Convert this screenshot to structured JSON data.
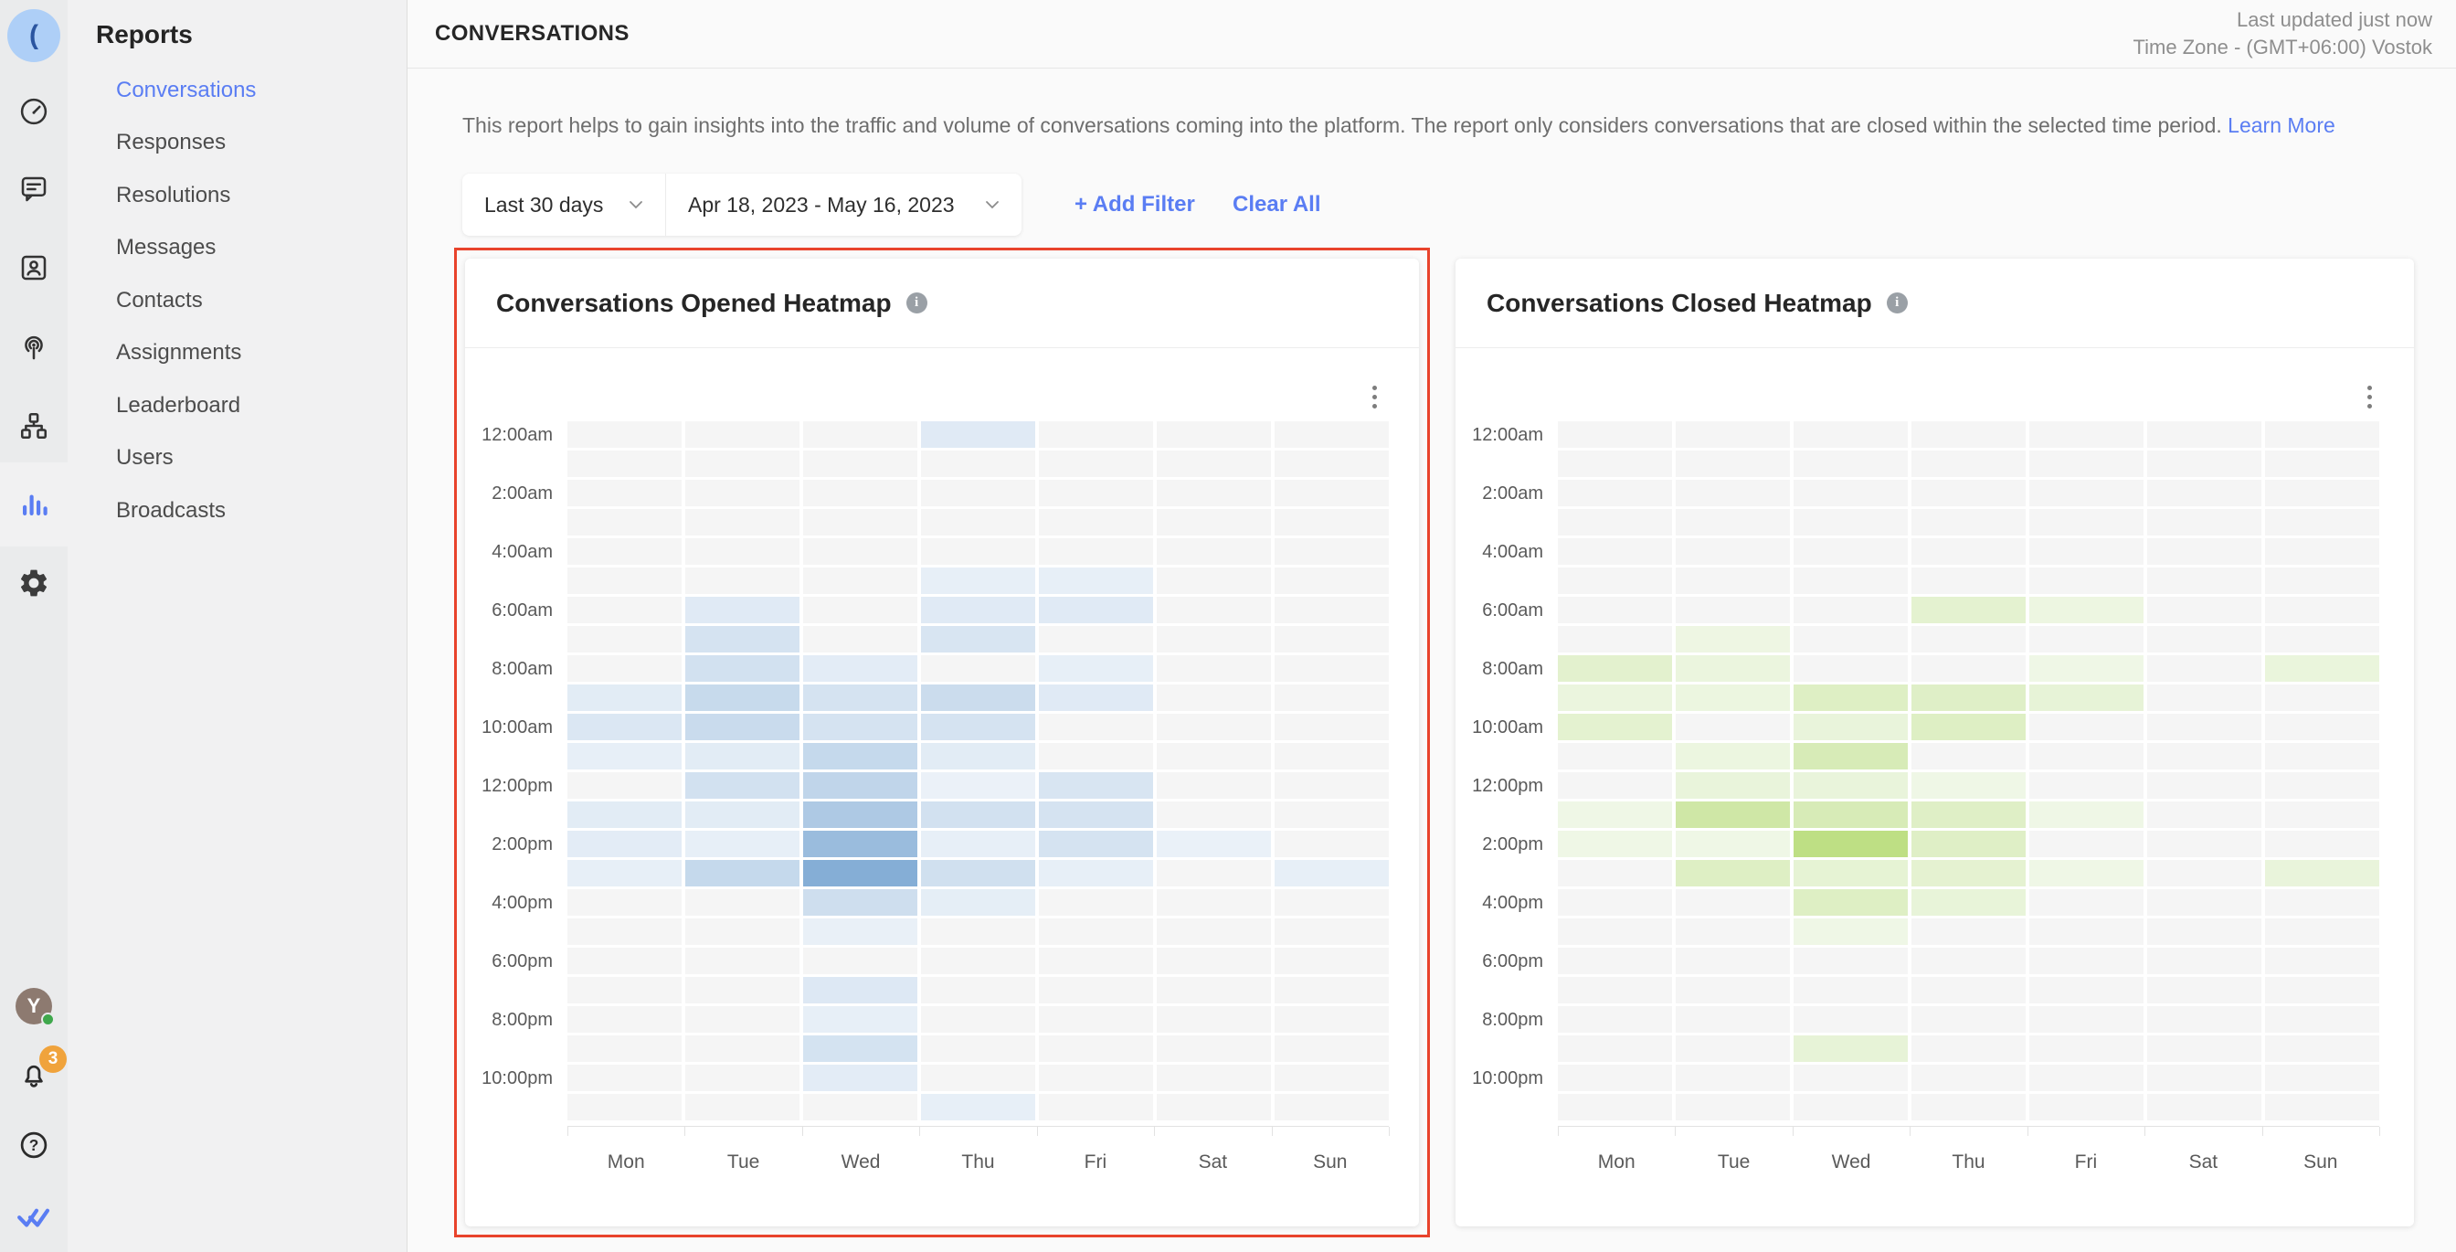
{
  "app": {
    "accent_blue": "#5a7df3",
    "highlight_red": "#e8432c",
    "zero_cell_gray": "#f5f5f5"
  },
  "rail": {
    "workspace_avatar_glyph": "(",
    "nav_icons": [
      "dashboard",
      "messages",
      "contacts",
      "broadcast",
      "workflows",
      "reports",
      "settings"
    ],
    "active_icon": "reports",
    "user_initial": "Y",
    "notification_count": "3",
    "bottom_icons": [
      "user-avatar",
      "bell",
      "help",
      "brand-logo"
    ]
  },
  "sidebar": {
    "title": "Reports",
    "items": [
      {
        "label": "Conversations",
        "active": true
      },
      {
        "label": "Responses",
        "active": false
      },
      {
        "label": "Resolutions",
        "active": false
      },
      {
        "label": "Messages",
        "active": false
      },
      {
        "label": "Contacts",
        "active": false
      },
      {
        "label": "Assignments",
        "active": false
      },
      {
        "label": "Leaderboard",
        "active": false
      },
      {
        "label": "Users",
        "active": false
      },
      {
        "label": "Broadcasts",
        "active": false
      }
    ]
  },
  "header": {
    "title": "CONVERSATIONS",
    "last_updated": "Last updated just now",
    "timezone": "Time Zone - (GMT+06:00) Vostok"
  },
  "intro": {
    "text": "This report helps to gain insights into the traffic and volume of conversations coming into the platform. The report only considers conversations that are closed within the selected time period.",
    "link_label": "Learn More"
  },
  "filters": {
    "preset": "Last 30 days",
    "date_range": "Apr 18, 2023 - May 16, 2023",
    "add_filter_label": "+ Add Filter",
    "clear_all_label": "Clear All"
  },
  "chart_data": [
    {
      "type": "heatmap",
      "title": "Conversations Opened Heatmap",
      "selected": true,
      "legend_position": "none",
      "grid": "cells with white gaps, gray = zero",
      "x_labels": [
        "Mon",
        "Tue",
        "Wed",
        "Thu",
        "Fri",
        "Sat",
        "Sun"
      ],
      "y_tick_labels": [
        "12:00am",
        "2:00am",
        "4:00am",
        "6:00am",
        "8:00am",
        "10:00am",
        "12:00pm",
        "2:00pm",
        "4:00pm",
        "6:00pm",
        "8:00pm",
        "10:00pm"
      ],
      "y_rows": [
        "12:00am",
        "1:00am",
        "2:00am",
        "3:00am",
        "4:00am",
        "5:00am",
        "6:00am",
        "7:00am",
        "8:00am",
        "9:00am",
        "10:00am",
        "11:00am",
        "12:00pm",
        "1:00pm",
        "2:00pm",
        "3:00pm",
        "4:00pm",
        "5:00pm",
        "6:00pm",
        "7:00pm",
        "8:00pm",
        "9:00pm",
        "10:00pm",
        "11:00pm"
      ],
      "value_scale": "relative intensity 0-100, 0 = no conversations, 100 = peak (Wed 3:00pm)",
      "colors": {
        "zero": "#f5f5f5",
        "min": "#f0f5fa",
        "max": "#85aed6"
      },
      "values": [
        [
          0,
          0,
          0,
          15,
          0,
          0,
          0
        ],
        [
          0,
          0,
          0,
          0,
          0,
          0,
          0
        ],
        [
          0,
          0,
          0,
          0,
          0,
          0,
          0
        ],
        [
          0,
          0,
          0,
          0,
          0,
          0,
          0
        ],
        [
          0,
          0,
          0,
          0,
          0,
          0,
          0
        ],
        [
          0,
          0,
          0,
          8,
          8,
          0,
          0
        ],
        [
          0,
          15,
          0,
          15,
          15,
          0,
          0
        ],
        [
          0,
          25,
          0,
          22,
          0,
          0,
          0
        ],
        [
          0,
          28,
          12,
          0,
          8,
          0,
          0
        ],
        [
          13,
          38,
          25,
          35,
          15,
          0,
          0
        ],
        [
          20,
          36,
          25,
          25,
          0,
          0,
          0
        ],
        [
          8,
          13,
          40,
          13,
          0,
          0,
          0
        ],
        [
          0,
          28,
          45,
          5,
          22,
          0,
          0
        ],
        [
          13,
          13,
          62,
          28,
          25,
          0,
          0
        ],
        [
          12,
          8,
          80,
          8,
          25,
          6,
          0
        ],
        [
          8,
          40,
          100,
          30,
          8,
          0,
          8
        ],
        [
          0,
          0,
          32,
          10,
          0,
          0,
          0
        ],
        [
          0,
          0,
          7,
          0,
          0,
          0,
          0
        ],
        [
          0,
          0,
          0,
          0,
          0,
          0,
          0
        ],
        [
          0,
          0,
          18,
          0,
          0,
          0,
          0
        ],
        [
          0,
          0,
          8,
          0,
          0,
          0,
          0
        ],
        [
          0,
          0,
          26,
          0,
          0,
          0,
          0
        ],
        [
          0,
          0,
          12,
          0,
          0,
          0,
          0
        ],
        [
          0,
          0,
          0,
          8,
          0,
          0,
          0
        ]
      ]
    },
    {
      "type": "heatmap",
      "title": "Conversations Closed Heatmap",
      "selected": false,
      "legend_position": "none",
      "grid": "cells with white gaps, gray = zero",
      "x_labels": [
        "Mon",
        "Tue",
        "Wed",
        "Thu",
        "Fri",
        "Sat",
        "Sun"
      ],
      "y_tick_labels": [
        "12:00am",
        "2:00am",
        "4:00am",
        "6:00am",
        "8:00am",
        "10:00am",
        "12:00pm",
        "2:00pm",
        "4:00pm",
        "6:00pm",
        "8:00pm",
        "10:00pm"
      ],
      "y_rows": [
        "12:00am",
        "1:00am",
        "2:00am",
        "3:00am",
        "4:00am",
        "5:00am",
        "6:00am",
        "7:00am",
        "8:00am",
        "9:00am",
        "10:00am",
        "11:00am",
        "12:00pm",
        "1:00pm",
        "2:00pm",
        "3:00pm",
        "4:00pm",
        "5:00pm",
        "6:00pm",
        "7:00pm",
        "8:00pm",
        "9:00pm",
        "10:00pm",
        "11:00pm"
      ],
      "value_scale": "relative intensity 0-100, 0 = no conversations, 100 = peak (Wed 2:00pm)",
      "colors": {
        "zero": "#f5f5f5",
        "min": "#f3f9ee",
        "max": "#bedf84"
      },
      "values": [
        [
          0,
          0,
          0,
          0,
          0,
          0,
          0
        ],
        [
          0,
          0,
          0,
          0,
          0,
          0,
          0
        ],
        [
          0,
          0,
          0,
          0,
          0,
          0,
          0
        ],
        [
          0,
          0,
          0,
          0,
          0,
          0,
          0
        ],
        [
          0,
          0,
          0,
          0,
          0,
          0,
          0
        ],
        [
          0,
          0,
          0,
          0,
          0,
          0,
          0
        ],
        [
          0,
          0,
          0,
          28,
          12,
          0,
          0
        ],
        [
          0,
          10,
          0,
          0,
          0,
          0,
          0
        ],
        [
          30,
          15,
          0,
          0,
          8,
          0,
          17
        ],
        [
          15,
          13,
          40,
          37,
          22,
          0,
          0
        ],
        [
          28,
          0,
          18,
          40,
          0,
          0,
          0
        ],
        [
          0,
          13,
          52,
          0,
          0,
          0,
          0
        ],
        [
          0,
          18,
          18,
          8,
          0,
          0,
          0
        ],
        [
          8,
          68,
          52,
          38,
          8,
          0,
          0
        ],
        [
          8,
          8,
          100,
          38,
          0,
          0,
          0
        ],
        [
          0,
          40,
          25,
          27,
          8,
          0,
          18
        ],
        [
          0,
          0,
          40,
          20,
          0,
          0,
          0
        ],
        [
          0,
          0,
          8,
          0,
          0,
          0,
          0
        ],
        [
          0,
          0,
          0,
          0,
          0,
          0,
          0
        ],
        [
          0,
          0,
          0,
          0,
          0,
          0,
          0
        ],
        [
          0,
          0,
          0,
          0,
          0,
          0,
          0
        ],
        [
          0,
          0,
          22,
          0,
          0,
          0,
          0
        ],
        [
          0,
          0,
          0,
          0,
          0,
          0,
          0
        ],
        [
          0,
          0,
          0,
          0,
          0,
          0,
          0
        ]
      ]
    }
  ]
}
